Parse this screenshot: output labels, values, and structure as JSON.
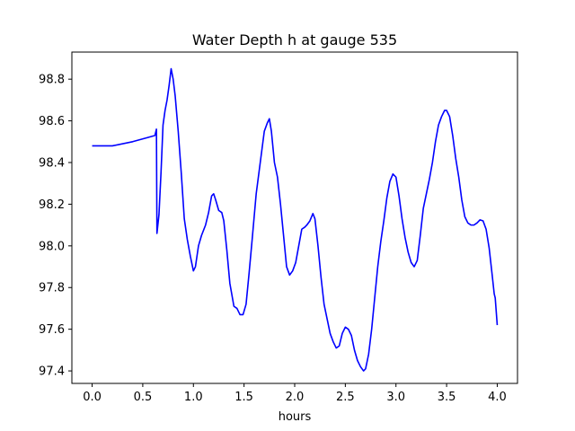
{
  "chart_data": {
    "type": "line",
    "title": "Water Depth h at gauge 535",
    "xlabel": "hours",
    "ylabel": "",
    "xlim": [
      -0.2,
      4.2
    ],
    "ylim": [
      97.34,
      98.93
    ],
    "xticks": [
      0.0,
      0.5,
      1.0,
      1.5,
      2.0,
      2.5,
      3.0,
      3.5,
      4.0
    ],
    "xtick_labels": [
      "0.0",
      "0.5",
      "1.0",
      "1.5",
      "2.0",
      "2.5",
      "3.0",
      "3.5",
      "4.0"
    ],
    "yticks": [
      97.4,
      97.6,
      97.8,
      98.0,
      98.2,
      98.4,
      98.6,
      98.8
    ],
    "ytick_labels": [
      "97.4",
      "97.6",
      "97.8",
      "98.0",
      "98.2",
      "98.4",
      "98.6",
      "98.8"
    ],
    "grid": false,
    "series": [
      {
        "name": "",
        "color": "#0000ff",
        "points": [
          [
            0.0,
            98.48
          ],
          [
            0.2,
            98.48
          ],
          [
            0.4,
            98.5
          ],
          [
            0.55,
            98.52
          ],
          [
            0.62,
            98.53
          ],
          [
            0.635,
            98.56
          ],
          [
            0.64,
            98.06
          ],
          [
            0.66,
            98.15
          ],
          [
            0.68,
            98.35
          ],
          [
            0.7,
            98.58
          ],
          [
            0.72,
            98.65
          ],
          [
            0.74,
            98.7
          ],
          [
            0.76,
            98.77
          ],
          [
            0.78,
            98.85
          ],
          [
            0.8,
            98.8
          ],
          [
            0.82,
            98.72
          ],
          [
            0.85,
            98.55
          ],
          [
            0.88,
            98.35
          ],
          [
            0.91,
            98.13
          ],
          [
            0.94,
            98.03
          ],
          [
            0.97,
            97.95
          ],
          [
            1.0,
            97.88
          ],
          [
            1.02,
            97.9
          ],
          [
            1.05,
            98.0
          ],
          [
            1.08,
            98.05
          ],
          [
            1.12,
            98.1
          ],
          [
            1.15,
            98.16
          ],
          [
            1.18,
            98.24
          ],
          [
            1.2,
            98.25
          ],
          [
            1.22,
            98.22
          ],
          [
            1.25,
            98.17
          ],
          [
            1.28,
            98.16
          ],
          [
            1.3,
            98.12
          ],
          [
            1.33,
            97.98
          ],
          [
            1.36,
            97.82
          ],
          [
            1.4,
            97.71
          ],
          [
            1.43,
            97.7
          ],
          [
            1.46,
            97.67
          ],
          [
            1.49,
            97.67
          ],
          [
            1.52,
            97.72
          ],
          [
            1.55,
            97.87
          ],
          [
            1.58,
            98.03
          ],
          [
            1.62,
            98.25
          ],
          [
            1.66,
            98.4
          ],
          [
            1.7,
            98.55
          ],
          [
            1.73,
            98.59
          ],
          [
            1.75,
            98.61
          ],
          [
            1.77,
            98.55
          ],
          [
            1.8,
            98.4
          ],
          [
            1.83,
            98.33
          ],
          [
            1.86,
            98.2
          ],
          [
            1.89,
            98.05
          ],
          [
            1.92,
            97.9
          ],
          [
            1.95,
            97.86
          ],
          [
            1.98,
            97.88
          ],
          [
            2.01,
            97.92
          ],
          [
            2.04,
            98.0
          ],
          [
            2.07,
            98.08
          ],
          [
            2.1,
            98.09
          ],
          [
            2.12,
            98.1
          ],
          [
            2.15,
            98.12
          ],
          [
            2.18,
            98.155
          ],
          [
            2.2,
            98.13
          ],
          [
            2.23,
            98.0
          ],
          [
            2.26,
            97.85
          ],
          [
            2.29,
            97.72
          ],
          [
            2.32,
            97.65
          ],
          [
            2.35,
            97.58
          ],
          [
            2.38,
            97.54
          ],
          [
            2.41,
            97.51
          ],
          [
            2.44,
            97.52
          ],
          [
            2.47,
            97.58
          ],
          [
            2.5,
            97.61
          ],
          [
            2.53,
            97.6
          ],
          [
            2.56,
            97.57
          ],
          [
            2.59,
            97.5
          ],
          [
            2.62,
            97.45
          ],
          [
            2.65,
            97.42
          ],
          [
            2.68,
            97.4
          ],
          [
            2.7,
            97.41
          ],
          [
            2.73,
            97.48
          ],
          [
            2.76,
            97.6
          ],
          [
            2.79,
            97.75
          ],
          [
            2.82,
            97.9
          ],
          [
            2.85,
            98.02
          ],
          [
            2.88,
            98.12
          ],
          [
            2.91,
            98.23
          ],
          [
            2.94,
            98.31
          ],
          [
            2.97,
            98.345
          ],
          [
            3.0,
            98.33
          ],
          [
            3.03,
            98.24
          ],
          [
            3.06,
            98.13
          ],
          [
            3.09,
            98.04
          ],
          [
            3.12,
            97.97
          ],
          [
            3.15,
            97.92
          ],
          [
            3.18,
            97.9
          ],
          [
            3.21,
            97.93
          ],
          [
            3.24,
            98.05
          ],
          [
            3.27,
            98.18
          ],
          [
            3.3,
            98.25
          ],
          [
            3.33,
            98.32
          ],
          [
            3.36,
            98.4
          ],
          [
            3.39,
            98.5
          ],
          [
            3.42,
            98.58
          ],
          [
            3.45,
            98.62
          ],
          [
            3.48,
            98.65
          ],
          [
            3.5,
            98.65
          ],
          [
            3.53,
            98.62
          ],
          [
            3.56,
            98.53
          ],
          [
            3.59,
            98.42
          ],
          [
            3.62,
            98.33
          ],
          [
            3.65,
            98.22
          ],
          [
            3.68,
            98.14
          ],
          [
            3.71,
            98.11
          ],
          [
            3.74,
            98.1
          ],
          [
            3.77,
            98.1
          ],
          [
            3.8,
            98.11
          ],
          [
            3.83,
            98.125
          ],
          [
            3.86,
            98.12
          ],
          [
            3.89,
            98.08
          ],
          [
            3.92,
            97.99
          ],
          [
            3.95,
            97.86
          ],
          [
            3.97,
            97.77
          ],
          [
            3.98,
            97.75
          ],
          [
            4.0,
            97.62
          ]
        ]
      }
    ]
  }
}
